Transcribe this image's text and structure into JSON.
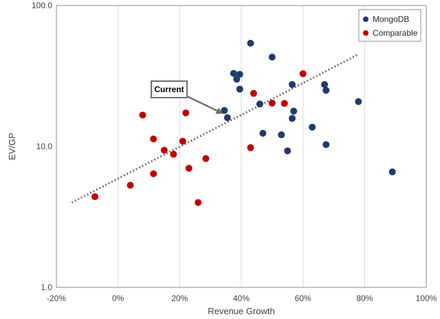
{
  "chart_data": {
    "type": "scatter",
    "xlabel": "Revenue Growth",
    "ylabel": "EV/GP",
    "x_axis": {
      "range": [
        -0.2,
        1.0
      ],
      "ticks": [
        -0.2,
        0.0,
        0.2,
        0.4,
        0.6,
        0.8,
        1.0
      ],
      "tick_labels": [
        "-20%",
        "0%",
        "20%",
        "40%",
        "60%",
        "80%",
        "100%"
      ]
    },
    "y_axis": {
      "scale": "log",
      "range": [
        1,
        100
      ],
      "ticks": [
        1,
        10,
        100
      ],
      "tick_labels": [
        "1.0",
        "10.0",
        "100.0"
      ]
    },
    "grid": "vertical",
    "legend": {
      "position": "top-right"
    },
    "series": [
      {
        "name": "MongoDB",
        "color": "#1f3a6e",
        "points": [
          {
            "x": 0.43,
            "y": 54.0
          },
          {
            "x": 0.5,
            "y": 43.0
          },
          {
            "x": 0.375,
            "y": 33.0
          },
          {
            "x": 0.395,
            "y": 32.5
          },
          {
            "x": 0.385,
            "y": 30.0
          },
          {
            "x": 0.395,
            "y": 25.5
          },
          {
            "x": 0.345,
            "y": 18.0
          },
          {
            "x": 0.355,
            "y": 16.0
          },
          {
            "x": 0.46,
            "y": 20.0
          },
          {
            "x": 0.565,
            "y": 27.5
          },
          {
            "x": 0.57,
            "y": 17.8
          },
          {
            "x": 0.565,
            "y": 15.8
          },
          {
            "x": 0.47,
            "y": 12.4
          },
          {
            "x": 0.53,
            "y": 12.1
          },
          {
            "x": 0.55,
            "y": 9.3
          },
          {
            "x": 0.63,
            "y": 13.7
          },
          {
            "x": 0.67,
            "y": 27.5
          },
          {
            "x": 0.675,
            "y": 25.0
          },
          {
            "x": 0.675,
            "y": 10.3
          },
          {
            "x": 0.78,
            "y": 20.8
          },
          {
            "x": 0.89,
            "y": 6.6
          }
        ]
      },
      {
        "name": "Comparable",
        "color": "#c00000",
        "points": [
          {
            "x": -0.075,
            "y": 4.4
          },
          {
            "x": 0.04,
            "y": 5.3
          },
          {
            "x": 0.08,
            "y": 16.7
          },
          {
            "x": 0.115,
            "y": 11.3
          },
          {
            "x": 0.115,
            "y": 6.4
          },
          {
            "x": 0.15,
            "y": 9.4
          },
          {
            "x": 0.18,
            "y": 8.8
          },
          {
            "x": 0.21,
            "y": 10.9
          },
          {
            "x": 0.22,
            "y": 17.3
          },
          {
            "x": 0.23,
            "y": 7.0
          },
          {
            "x": 0.26,
            "y": 4.0
          },
          {
            "x": 0.285,
            "y": 8.2
          },
          {
            "x": 0.43,
            "y": 9.8
          },
          {
            "x": 0.44,
            "y": 23.8
          },
          {
            "x": 0.5,
            "y": 20.3
          },
          {
            "x": 0.54,
            "y": 20.2
          },
          {
            "x": 0.6,
            "y": 32.8
          }
        ]
      }
    ],
    "trendline": {
      "style": "dotted",
      "color": "#707070",
      "from": {
        "x": -0.15,
        "y": 4.0
      },
      "to": {
        "x": 0.78,
        "y": 45.0
      }
    },
    "annotation": {
      "text": "Current",
      "points_to": {
        "x": 0.35,
        "y": 16.5
      }
    }
  }
}
